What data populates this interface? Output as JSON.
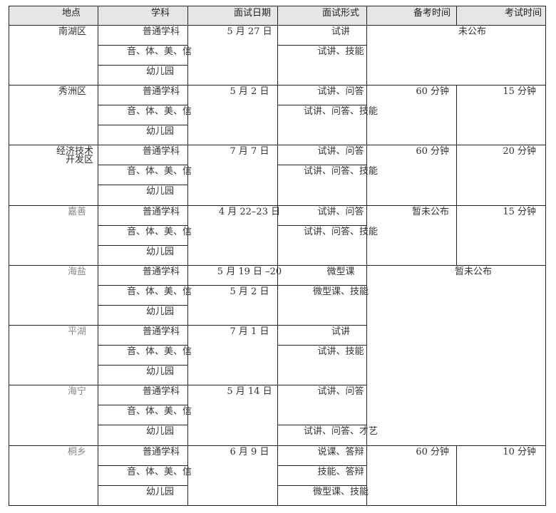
{
  "header": [
    "地点",
    "学科",
    "面试日期",
    "面试形式",
    "备考时间",
    "考试时间"
  ],
  "rows": [
    {
      "place": [
        "南湖区"
      ],
      "subjects": [
        "普通学科",
        "音、体、美、信",
        "幼儿园"
      ],
      "dates": [
        "5 月 27 日",
        "",
        ""
      ],
      "forms": [
        "试讲",
        "试讲、技能",
        ""
      ],
      "prep": "",
      "exam": "",
      "merged_time": "未公布"
    },
    {
      "place": [
        "秀洲区"
      ],
      "subjects": [
        "普通学科",
        "音、体、美、信",
        "幼儿园"
      ],
      "dates": [
        "5 月 2 日",
        "",
        ""
      ],
      "forms": [
        "试讲、问答",
        "试讲、问答、技能",
        ""
      ],
      "prep": "60 分钟",
      "exam": "15 分钟"
    },
    {
      "place": [
        "经济技术",
        "开发区"
      ],
      "subjects": [
        "普通学科",
        "音、体、美、信",
        "幼儿园"
      ],
      "dates": [
        "7 月 7 日",
        "",
        ""
      ],
      "forms": [
        "试讲、问答",
        "试讲、问答、技能",
        ""
      ],
      "prep": "60 分钟",
      "exam": "20 分钟"
    },
    {
      "place": [
        "嘉善"
      ],
      "subjects": [
        "普通学科",
        "音、体、美、信",
        "幼儿园"
      ],
      "dates": [
        "4 月 22–23 日",
        "",
        ""
      ],
      "forms": [
        "试讲、问答",
        "试讲、问答、技能",
        ""
      ],
      "prep": "暂未公布",
      "exam": "15 分钟"
    },
    {
      "place": [
        "海盐"
      ],
      "subjects": [
        "普通学科",
        "音、体、美、信",
        "幼儿园"
      ],
      "dates": [
        "5 月 19 日 –20",
        "5 月 2 日",
        ""
      ],
      "forms": [
        "微型课",
        "微型课、技能",
        ""
      ],
      "prep": "",
      "exam": "",
      "merged_time": "暂未公布"
    },
    {
      "place": [
        "平湖"
      ],
      "subjects": [
        "普通学科",
        "音、体、美、信",
        "幼儿园"
      ],
      "dates": [
        "7 月 1 日",
        "",
        ""
      ],
      "forms": [
        "试讲",
        "试讲、技能",
        ""
      ],
      "prep": "",
      "exam": ""
    },
    {
      "place": [
        "海宁"
      ],
      "subjects": [
        "普通学科",
        "音、体、美、信",
        "幼儿园"
      ],
      "dates": [
        "5 月 14 日",
        "",
        ""
      ],
      "forms": [
        "试讲、问答",
        "",
        "试讲、问答、才艺"
      ],
      "prep": "",
      "exam": ""
    },
    {
      "place": [
        "桐乡"
      ],
      "subjects": [
        "普通学科",
        "音、体、美、信",
        "幼儿园"
      ],
      "dates": [
        "6 月 9 日",
        "",
        ""
      ],
      "forms": [
        "说课、答辩",
        "技能、答辩",
        "微型课、技能"
      ],
      "prep": "60 分钟",
      "exam": "10 分钟"
    }
  ]
}
